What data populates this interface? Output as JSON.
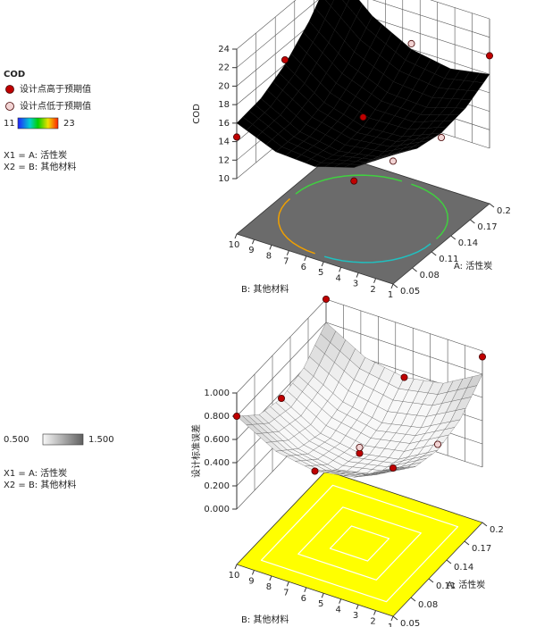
{
  "chart_data": [
    {
      "type": "surface3d",
      "legend_title": "COD",
      "zlabel": "COD",
      "xlabel": "A: 活性炭",
      "ylabel": "B: 其他材料",
      "factors": [
        "X1 = A: 活性炭",
        "X2 = B: 其他材料"
      ],
      "colormap": "rainbow",
      "colorbar": [
        11,
        23
      ],
      "floor_color": "#6b6b6b",
      "xlim": [
        0.05,
        0.2
      ],
      "xticks": [
        0.05,
        0.08,
        0.11,
        0.14,
        0.17,
        0.2
      ],
      "ylim": [
        1,
        10
      ],
      "yticks": [
        1,
        2,
        3,
        4,
        5,
        6,
        7,
        8,
        9,
        10
      ],
      "zlim": [
        10,
        24
      ],
      "zticks": [
        10,
        12,
        14,
        16,
        18,
        20,
        22,
        24
      ],
      "surface": {
        "x": [
          0.05,
          0.0875,
          0.125,
          0.1625,
          0.2
        ],
        "y": [
          1,
          3.25,
          5.5,
          7.75,
          10
        ],
        "z": [
          [
            18,
            16.5,
            16,
            16.5,
            18
          ],
          [
            15.25,
            14.25,
            14.25,
            15.25,
            17.25
          ],
          [
            14,
            13.5,
            14,
            15.5,
            18
          ],
          [
            14.25,
            14.25,
            15.25,
            17.25,
            20.25
          ],
          [
            16,
            16.5,
            18,
            20.5,
            24
          ]
        ]
      },
      "series": [
        {
          "name": "设计点高于预期值",
          "color": "#c00000",
          "x": [
            0.2,
            0.2,
            0.125,
            0.125,
            0.05,
            0.05
          ],
          "y": [
            10,
            1,
            10,
            5.5,
            10,
            3.25
          ],
          "z": [
            24.3,
            20,
            18.5,
            15,
            14.5,
            13.8
          ]
        },
        {
          "name": "设计点低于预期值",
          "color": "#f2d4d4",
          "x": [
            0.2,
            0.125,
            0.05
          ],
          "y": [
            5.5,
            1,
            1
          ],
          "z": [
            18.6,
            15.5,
            17.3
          ]
        }
      ]
    },
    {
      "type": "surface3d",
      "zlabel": "设计标准误差",
      "xlabel": "A: 活性炭",
      "ylabel": "B: 其他材料",
      "factors": [
        "X1 = A: 活性炭",
        "X2 = B: 其他材料"
      ],
      "colormap": "gray",
      "colorbar": [
        {
          "value": 0.5,
          "label": "0.500"
        },
        {
          "value": 1.5,
          "label": "1.500"
        }
      ],
      "floor_color": "#ffff00",
      "xlim": [
        0.05,
        0.2
      ],
      "xticks": [
        0.05,
        0.08,
        0.11,
        0.14,
        0.17,
        0.2
      ],
      "ylim": [
        1,
        10
      ],
      "yticks": [
        1,
        2,
        3,
        4,
        5,
        6,
        7,
        8,
        9,
        10
      ],
      "zlim": [
        0,
        1
      ],
      "zticks": [
        {
          "value": 0,
          "label": "0.000"
        },
        {
          "value": 0.2,
          "label": "0.200"
        },
        {
          "value": 0.4,
          "label": "0.400"
        },
        {
          "value": 0.6,
          "label": "0.600"
        },
        {
          "value": 0.8,
          "label": "0.800"
        },
        {
          "value": 1,
          "label": "1.000"
        }
      ],
      "surface": {
        "x": [
          0.05,
          0.0875,
          0.125,
          0.1625,
          0.2
        ],
        "y": [
          1,
          3.25,
          5.5,
          7.75,
          10
        ],
        "z": [
          [
            0.8,
            0.61,
            0.55,
            0.61,
            0.8
          ],
          [
            0.61,
            0.43,
            0.36,
            0.43,
            0.61
          ],
          [
            0.55,
            0.36,
            0.3,
            0.36,
            0.55
          ],
          [
            0.61,
            0.43,
            0.36,
            0.43,
            0.61
          ],
          [
            0.8,
            0.61,
            0.55,
            0.61,
            0.8
          ]
        ]
      },
      "series": [
        {
          "color": "#c00000",
          "x": [
            0.2,
            0.05,
            0.2,
            0.05,
            0.125,
            0.125,
            0.2,
            0.05
          ],
          "y": [
            10,
            10,
            1,
            1,
            5.5,
            10,
            5.5,
            5.5
          ],
          "z": [
            1.0,
            0.8,
            0.95,
            0.8,
            0.3,
            0.55,
            0.55,
            0.55
          ]
        },
        {
          "color": "#f2d4d4",
          "x": [
            0.125,
            0.125
          ],
          "y": [
            5.5,
            1
          ],
          "z": [
            0.35,
            0.6
          ]
        }
      ]
    }
  ]
}
